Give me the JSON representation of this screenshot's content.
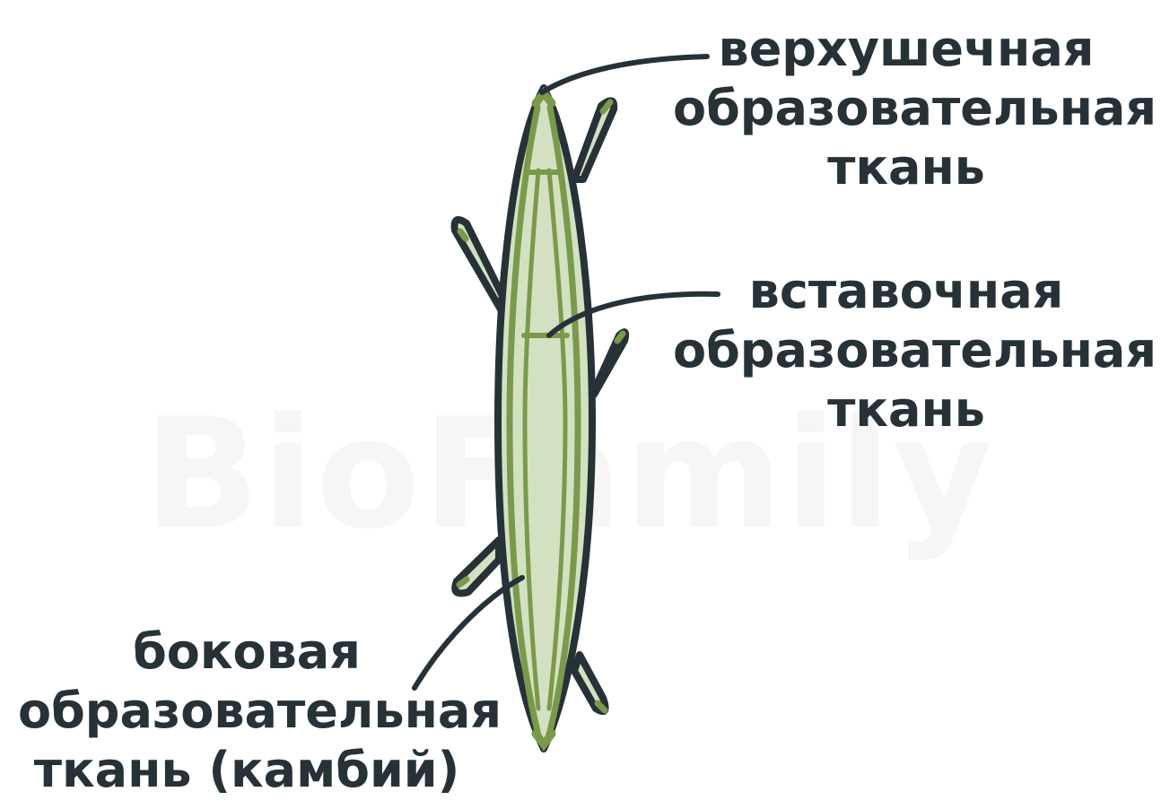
{
  "watermark": "BioFamily",
  "labels": {
    "apical": [
      "верхушечная",
      "образовательная",
      "ткань"
    ],
    "intercalary": [
      "вставочная",
      "образовательная",
      "ткань"
    ],
    "lateral": [
      "боковая",
      "образовательная",
      "ткань (камбий)"
    ]
  },
  "colors": {
    "outline": "#263238",
    "fill": "#d3e1c2",
    "meristem": "#7a9a4a",
    "text": "#263238"
  }
}
